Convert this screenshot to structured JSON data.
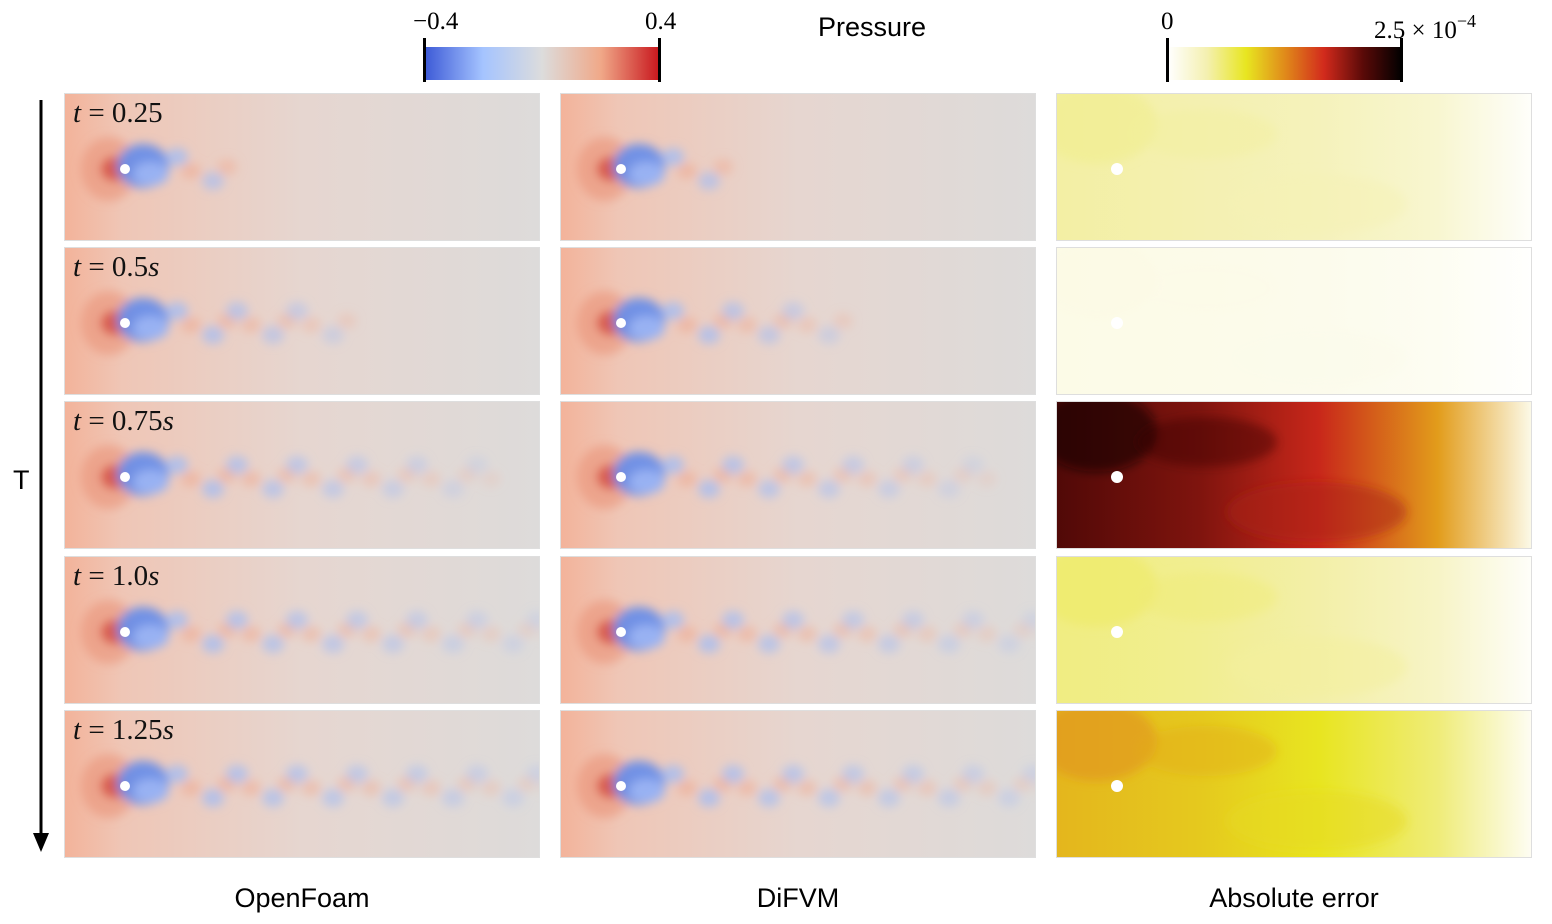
{
  "figure": {
    "pressure_colorbar": {
      "title": "Pressure",
      "min_label": "−0.4",
      "max_label": "0.4",
      "colors": [
        "#3b58d6",
        "#a5c4ff",
        "#dcdcdc",
        "#f0a888",
        "#c8151c"
      ]
    },
    "error_colorbar": {
      "min_label": "0",
      "max_label": "2.5 × 10",
      "max_exponent": "−4",
      "colors": [
        "#ffffff",
        "#f4f0b0",
        "#e8e620",
        "#e08a1a",
        "#d22a1c",
        "#5a0a08",
        "#000000"
      ]
    },
    "axis": {
      "label": "T"
    },
    "columns": [
      {
        "label": "OpenFoam"
      },
      {
        "label": "DiFVM"
      },
      {
        "label": "Absolute error"
      }
    ],
    "rows": [
      {
        "time_var": "t",
        "time_eq": " = ",
        "time_value": "0.25",
        "time_unit": "",
        "vortex_count": 2,
        "error_level": 0.18
      },
      {
        "time_var": "t",
        "time_eq": " = ",
        "time_value": "0.5",
        "time_unit": "s",
        "vortex_count": 6,
        "error_level": 0.05
      },
      {
        "time_var": "t",
        "time_eq": " = ",
        "time_value": "0.75",
        "time_unit": "s",
        "vortex_count": 11,
        "error_level": 0.85
      },
      {
        "time_var": "t",
        "time_eq": " = ",
        "time_value": "1.0",
        "time_unit": "s",
        "vortex_count": 14,
        "error_level": 0.22
      },
      {
        "time_var": "t",
        "time_eq": " = ",
        "time_value": "1.25",
        "time_unit": "s",
        "vortex_count": 16,
        "error_level": 0.42
      }
    ]
  }
}
